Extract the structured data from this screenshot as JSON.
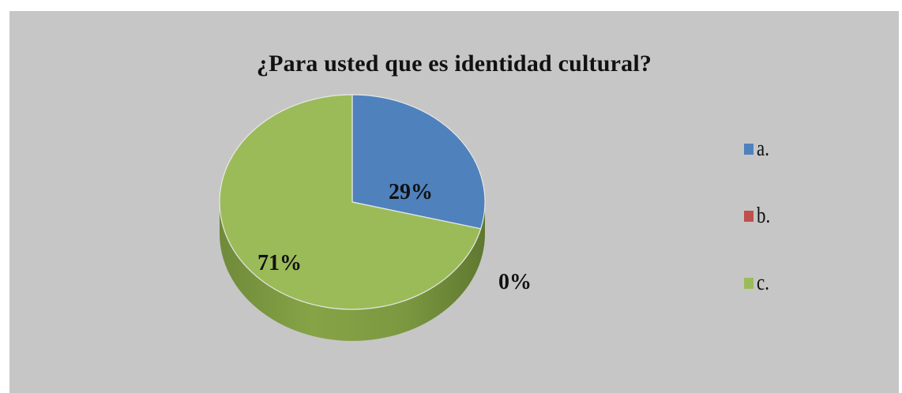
{
  "chart_data": {
    "type": "pie",
    "title": "¿Para usted que es identidad  cultural?",
    "categories": [
      "a.",
      "b.",
      "c."
    ],
    "values": [
      29,
      0,
      71
    ],
    "data_labels": [
      "29%",
      "0%",
      "71%"
    ],
    "colors": [
      "#4f81bd",
      "#c0504d",
      "#9bbb59"
    ],
    "legend_position": "right",
    "style": "3d"
  }
}
